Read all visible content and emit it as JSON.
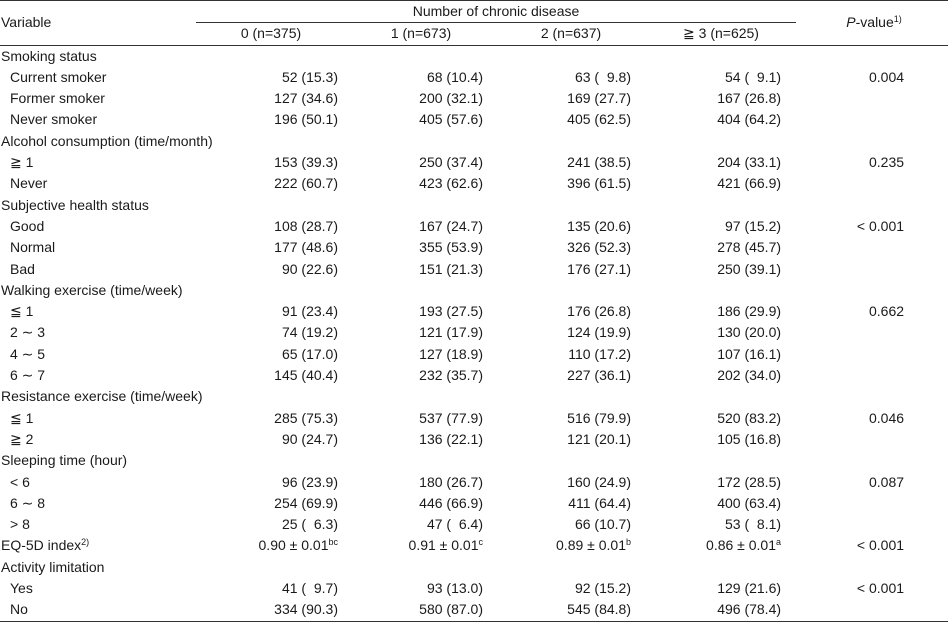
{
  "header": {
    "variable": "Variable",
    "group_title": "Number of chronic disease",
    "groups": [
      "0 (n=375)",
      "1 (n=673)",
      "2 (n=637)",
      "≧ 3 (n=625)"
    ],
    "p_italic": "P",
    "p_rest": "-value",
    "p_sup": "1)"
  },
  "rows": [
    {
      "label": "Smoking status",
      "type": "cat"
    },
    {
      "label": "Current smoker",
      "type": "sub",
      "v": [
        "52 (15.3)",
        "68 (10.4)",
        "63 (  9.8)",
        "54 (  9.1)"
      ],
      "p": "0.004"
    },
    {
      "label": "Former smoker",
      "type": "sub",
      "v": [
        "127 (34.6)",
        "200 (32.1)",
        "169 (27.7)",
        "167 (26.8)"
      ],
      "p": ""
    },
    {
      "label": "Never smoker",
      "type": "sub",
      "v": [
        "196 (50.1)",
        "405 (57.6)",
        "405 (62.5)",
        "404 (64.2)"
      ],
      "p": ""
    },
    {
      "label": "Alcohol consumption (time/month)",
      "type": "cat"
    },
    {
      "label": "≧ 1",
      "type": "sub",
      "v": [
        "153 (39.3)",
        "250 (37.4)",
        "241 (38.5)",
        "204 (33.1)"
      ],
      "p": "0.235"
    },
    {
      "label": "Never",
      "type": "sub",
      "v": [
        "222 (60.7)",
        "423 (62.6)",
        "396 (61.5)",
        "421 (66.9)"
      ],
      "p": ""
    },
    {
      "label": "Subjective health status",
      "type": "cat"
    },
    {
      "label": "Good",
      "type": "sub",
      "v": [
        "108 (28.7)",
        "167 (24.7)",
        "135 (20.6)",
        "97 (15.2)"
      ],
      "p": "< 0.001"
    },
    {
      "label": "Normal",
      "type": "sub",
      "v": [
        "177 (48.6)",
        "355 (53.9)",
        "326 (52.3)",
        "278 (45.7)"
      ],
      "p": ""
    },
    {
      "label": "Bad",
      "type": "sub",
      "v": [
        "90 (22.6)",
        "151 (21.3)",
        "176 (27.1)",
        "250 (39.1)"
      ],
      "p": ""
    },
    {
      "label": "Walking exercise (time/week)",
      "type": "cat"
    },
    {
      "label": "≦ 1",
      "type": "sub",
      "v": [
        "91 (23.4)",
        "193 (27.5)",
        "176 (26.8)",
        "186 (29.9)"
      ],
      "p": "0.662"
    },
    {
      "label": "2 ∼ 3",
      "type": "sub",
      "v": [
        "74 (19.2)",
        "121 (17.9)",
        "124 (19.9)",
        "130 (20.0)"
      ],
      "p": ""
    },
    {
      "label": "4 ∼ 5",
      "type": "sub",
      "v": [
        "65 (17.0)",
        "127 (18.9)",
        "110 (17.2)",
        "107 (16.1)"
      ],
      "p": ""
    },
    {
      "label": "6 ∼ 7",
      "type": "sub",
      "v": [
        "145 (40.4)",
        "232 (35.7)",
        "227 (36.1)",
        "202 (34.0)"
      ],
      "p": ""
    },
    {
      "label": "Resistance exercise (time/week)",
      "type": "cat"
    },
    {
      "label": "≦ 1",
      "type": "sub",
      "v": [
        "285 (75.3)",
        "537 (77.9)",
        "516 (79.9)",
        "520 (83.2)"
      ],
      "p": "0.046"
    },
    {
      "label": "≧ 2",
      "type": "sub",
      "v": [
        "90 (24.7)",
        "136 (22.1)",
        "121 (20.1)",
        "105 (16.8)"
      ],
      "p": ""
    },
    {
      "label": "Sleeping time (hour)",
      "type": "cat"
    },
    {
      "label": "< 6",
      "type": "sub",
      "v": [
        "96 (23.9)",
        "180 (26.7)",
        "160 (24.9)",
        "172 (28.5)"
      ],
      "p": "0.087"
    },
    {
      "label": "6 ∼ 8",
      "type": "sub",
      "v": [
        "254 (69.9)",
        "446 (66.9)",
        "411 (64.4)",
        "400 (63.4)"
      ],
      "p": ""
    },
    {
      "label": "> 8",
      "type": "sub",
      "v": [
        "25 (  6.3)",
        "47 (  6.4)",
        "66 (10.7)",
        "53 (  8.1)"
      ],
      "p": ""
    },
    {
      "label": "EQ-5D index",
      "label_sup": "2)",
      "type": "cat",
      "v": [
        "0.90 ± 0.01",
        "0.91 ± 0.01",
        "0.89 ± 0.01",
        "0.86 ± 0.01"
      ],
      "v_sup": [
        "bc",
        "c",
        "b",
        "a"
      ],
      "p": "< 0.001"
    },
    {
      "label": "Activity limitation",
      "type": "cat"
    },
    {
      "label": "Yes",
      "type": "sub",
      "v": [
        "41 (  9.7)",
        "93 (13.0)",
        "92 (15.2)",
        "129 (21.6)"
      ],
      "p": "< 0.001"
    },
    {
      "label": "No",
      "type": "sub",
      "v": [
        "334 (90.3)",
        "580 (87.0)",
        "545 (84.8)",
        "496 (78.4)"
      ],
      "p": ""
    }
  ]
}
